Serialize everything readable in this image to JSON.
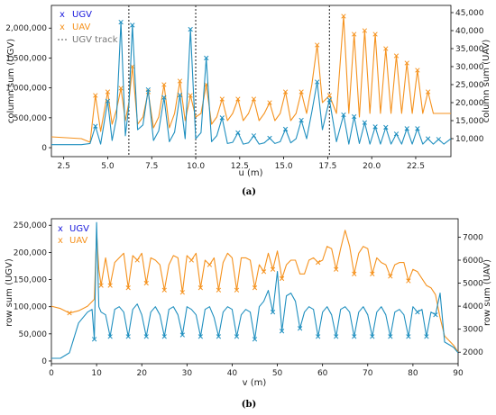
{
  "colors": {
    "ugv": "#1f8fbf",
    "uav": "#f5921e",
    "legend_ugv": "#1a1adc",
    "legend_uav": "#f5921e",
    "track": "#444444",
    "legend_track": "#777777"
  },
  "chart_data": [
    {
      "type": "line",
      "caption": "(a)",
      "xlabel": "u (m)",
      "ylabel_left": "column sum (UGV)",
      "ylabel_right": "column sum (UAV)",
      "xlim": [
        1.8,
        24.5
      ],
      "ylim_left": [
        -150000,
        2380000
      ],
      "ylim_right": [
        5000,
        47000
      ],
      "x_ticks": [
        2.5,
        5.0,
        7.5,
        10.0,
        12.5,
        15.0,
        17.5,
        20.0,
        22.5
      ],
      "x_tick_labels": [
        "2.5",
        "5.0",
        "7.5",
        "10.0",
        "12.5",
        "15.0",
        "17.5",
        "20.0",
        "22.5"
      ],
      "y_left_ticks": [
        0,
        500000,
        1000000,
        1500000,
        2000000
      ],
      "y_left_tick_labels": [
        "0",
        "500,000",
        "1,000,000",
        "1,500,000",
        "2,000,000"
      ],
      "y_right_ticks": [
        10000,
        15000,
        20000,
        25000,
        30000,
        35000,
        40000,
        45000
      ],
      "y_right_tick_labels": [
        "10,000",
        "15,000",
        "20,000",
        "25,000",
        "30,000",
        "35,000",
        "40,000",
        "45,000"
      ],
      "legend": [
        "UGV",
        "UAV",
        "UGV track"
      ],
      "legend_position": "top-left",
      "track_lines_x": [
        6.2,
        10.0,
        17.6
      ],
      "series": [
        {
          "name": "UGV",
          "axis": "left",
          "x": [
            1.8,
            3.5,
            4.0,
            4.3,
            4.6,
            5.0,
            5.25,
            5.5,
            5.75,
            6.0,
            6.2,
            6.4,
            6.7,
            7.0,
            7.3,
            7.6,
            7.9,
            8.2,
            8.5,
            8.8,
            9.1,
            9.4,
            9.7,
            10.0,
            10.3,
            10.6,
            10.9,
            11.2,
            11.5,
            11.8,
            12.1,
            12.4,
            12.7,
            13.0,
            13.3,
            13.6,
            13.9,
            14.2,
            14.5,
            14.8,
            15.1,
            15.4,
            15.7,
            16.0,
            16.3,
            16.6,
            16.9,
            17.2,
            17.6,
            18.0,
            18.4,
            18.7,
            19.0,
            19.3,
            19.6,
            19.9,
            20.2,
            20.5,
            20.8,
            21.1,
            21.4,
            21.7,
            22.0,
            22.3,
            22.6,
            22.9,
            23.2,
            23.5,
            23.8,
            24.1,
            24.5
          ],
          "y": [
            50000,
            50000,
            70000,
            360000,
            60000,
            780000,
            120000,
            500000,
            2100000,
            200000,
            700000,
            2050000,
            300000,
            380000,
            970000,
            120000,
            280000,
            840000,
            100000,
            260000,
            880000,
            150000,
            1980000,
            150000,
            250000,
            1500000,
            100000,
            200000,
            500000,
            70000,
            90000,
            250000,
            60000,
            80000,
            200000,
            60000,
            80000,
            160000,
            70000,
            100000,
            310000,
            80000,
            150000,
            460000,
            150000,
            600000,
            1100000,
            300000,
            800000,
            100000,
            550000,
            60000,
            520000,
            70000,
            420000,
            60000,
            350000,
            60000,
            340000,
            60000,
            230000,
            60000,
            320000,
            60000,
            320000,
            60000,
            150000,
            60000,
            140000,
            60000,
            150000
          ]
        },
        {
          "name": "UAV",
          "axis": "right",
          "x": [
            1.8,
            3.5,
            4.0,
            4.3,
            4.6,
            5.0,
            5.25,
            5.5,
            5.75,
            6.0,
            6.2,
            6.4,
            6.7,
            7.0,
            7.3,
            7.6,
            7.9,
            8.2,
            8.5,
            8.8,
            9.1,
            9.4,
            9.7,
            10.0,
            10.3,
            10.6,
            10.9,
            11.2,
            11.5,
            11.8,
            12.1,
            12.4,
            12.7,
            13.0,
            13.3,
            13.6,
            13.9,
            14.2,
            14.5,
            14.8,
            15.1,
            15.4,
            15.7,
            16.0,
            16.3,
            16.6,
            16.9,
            17.2,
            17.6,
            18.0,
            18.4,
            18.7,
            19.0,
            19.3,
            19.6,
            19.9,
            20.2,
            20.5,
            20.8,
            21.1,
            21.4,
            21.7,
            22.0,
            22.3,
            22.6,
            22.9,
            23.2,
            23.5,
            23.8,
            24.1,
            24.5
          ],
          "y": [
            10500,
            10000,
            9000,
            22000,
            12000,
            23000,
            14000,
            18000,
            24000,
            15000,
            20000,
            30000,
            14000,
            16000,
            23000,
            13000,
            16000,
            25000,
            13000,
            17000,
            26000,
            15000,
            22000,
            16000,
            17000,
            25000,
            14000,
            16000,
            21000,
            15000,
            17000,
            21000,
            15000,
            17000,
            21000,
            15000,
            17000,
            20000,
            15000,
            17000,
            23000,
            15000,
            17000,
            23000,
            17000,
            25000,
            36000,
            20000,
            22000,
            17000,
            44000,
            17000,
            39000,
            16000,
            40000,
            17000,
            39000,
            17000,
            35000,
            17000,
            33000,
            17000,
            31000,
            17000,
            29000,
            17000,
            23000,
            17000,
            17000,
            17000,
            17000
          ]
        }
      ]
    },
    {
      "type": "line",
      "caption": "(b)",
      "xlabel": "v (m)",
      "ylabel_left": "row sum (UGV)",
      "ylabel_right": "row sum (UAV)",
      "xlim": [
        0,
        90
      ],
      "ylim_left": [
        -5000,
        262000
      ],
      "ylim_right": [
        1500,
        7800
      ],
      "x_ticks": [
        0,
        10,
        20,
        30,
        40,
        50,
        60,
        70,
        80,
        90
      ],
      "x_tick_labels": [
        "0",
        "10",
        "20",
        "30",
        "40",
        "50",
        "60",
        "70",
        "80",
        "90"
      ],
      "y_left_ticks": [
        0,
        50000,
        100000,
        150000,
        200000,
        250000
      ],
      "y_left_tick_labels": [
        "0",
        "50,000",
        "100,000",
        "150,000",
        "200,000",
        "250,000"
      ],
      "y_right_ticks": [
        2000,
        3000,
        4000,
        5000,
        6000,
        7000
      ],
      "y_right_tick_labels": [
        "2000",
        "3000",
        "4000",
        "5000",
        "6000",
        "7000"
      ],
      "legend": [
        "UGV",
        "UAV"
      ],
      "legend_position": "top-left",
      "series": [
        {
          "name": "UGV",
          "axis": "left",
          "x": [
            0,
            2,
            4,
            6,
            7,
            8,
            9,
            9.5,
            10,
            10.5,
            11,
            12,
            13,
            14,
            15,
            16,
            17,
            18,
            19,
            20,
            21,
            22,
            23,
            24,
            25,
            26,
            27,
            28,
            29,
            30,
            31,
            32,
            33,
            34,
            35,
            36,
            37,
            38,
            39,
            40,
            41,
            42,
            43,
            44,
            45,
            46,
            47,
            48,
            49,
            50,
            51,
            52,
            53,
            54,
            55,
            56,
            57,
            58,
            59,
            60,
            61,
            62,
            63,
            64,
            65,
            66,
            67,
            68,
            69,
            70,
            71,
            72,
            73,
            74,
            75,
            76,
            77,
            78,
            79,
            80,
            81,
            82,
            83,
            84,
            85,
            86,
            87,
            88,
            89,
            90
          ],
          "y": [
            5000,
            5000,
            15000,
            70000,
            80000,
            90000,
            95000,
            40000,
            255000,
            100000,
            90000,
            85000,
            45000,
            95000,
            100000,
            90000,
            45000,
            95000,
            105000,
            85000,
            45000,
            90000,
            100000,
            85000,
            45000,
            95000,
            100000,
            85000,
            48000,
            100000,
            95000,
            85000,
            45000,
            95000,
            100000,
            80000,
            45000,
            90000,
            100000,
            95000,
            45000,
            85000,
            95000,
            90000,
            40000,
            100000,
            110000,
            130000,
            90000,
            165000,
            55000,
            120000,
            125000,
            110000,
            60000,
            90000,
            100000,
            95000,
            45000,
            90000,
            100000,
            85000,
            45000,
            95000,
            100000,
            90000,
            45000,
            90000,
            100000,
            85000,
            45000,
            90000,
            100000,
            85000,
            45000,
            90000,
            95000,
            85000,
            45000,
            100000,
            90000,
            95000,
            45000,
            90000,
            85000,
            125000,
            35000,
            30000,
            25000,
            15000
          ]
        },
        {
          "name": "UAV",
          "axis": "right",
          "x": [
            0,
            2,
            4,
            6,
            7,
            8,
            9,
            9.5,
            10,
            10.5,
            11,
            12,
            13,
            14,
            15,
            16,
            17,
            18,
            19,
            20,
            21,
            22,
            23,
            24,
            25,
            26,
            27,
            28,
            29,
            30,
            31,
            32,
            33,
            34,
            35,
            36,
            37,
            38,
            39,
            40,
            41,
            42,
            43,
            44,
            45,
            46,
            47,
            48,
            49,
            50,
            51,
            52,
            53,
            54,
            55,
            56,
            57,
            58,
            59,
            60,
            61,
            62,
            63,
            64,
            65,
            66,
            67,
            68,
            69,
            70,
            71,
            72,
            73,
            74,
            75,
            76,
            77,
            78,
            79,
            80,
            81,
            82,
            83,
            84,
            85,
            86,
            87,
            88,
            89,
            90
          ],
          "y": [
            4000,
            3900,
            3700,
            3800,
            3900,
            4000,
            4200,
            4300,
            7200,
            5600,
            4900,
            6100,
            4900,
            5900,
            6100,
            6300,
            4800,
            6200,
            6000,
            6300,
            5000,
            6100,
            6000,
            5800,
            4700,
            5800,
            6200,
            6100,
            4600,
            6200,
            6000,
            6300,
            4800,
            6000,
            5800,
            6100,
            4700,
            5900,
            6300,
            6100,
            4700,
            6100,
            6100,
            6000,
            4800,
            5800,
            5500,
            6300,
            5600,
            6400,
            5200,
            5800,
            6000,
            6000,
            5400,
            5400,
            6000,
            6100,
            5900,
            6000,
            6600,
            6500,
            5600,
            6500,
            7300,
            6600,
            5400,
            6300,
            6600,
            6500,
            5400,
            6100,
            5900,
            5800,
            5300,
            5800,
            5900,
            5900,
            5100,
            5600,
            5500,
            5200,
            4900,
            4800,
            4500,
            3500,
            2700,
            2500,
            2300,
            2000
          ]
        }
      ]
    }
  ]
}
